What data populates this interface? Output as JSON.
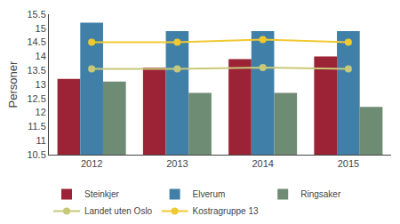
{
  "chart_data": {
    "type": "bar",
    "ylabel": "Personer",
    "categories": [
      "2012",
      "2013",
      "2014",
      "2015"
    ],
    "series": [
      {
        "name": "Steinkjer",
        "type": "bar",
        "color": "#9b2335",
        "values": [
          13.2,
          13.6,
          13.9,
          14.0
        ]
      },
      {
        "name": "Elverum",
        "type": "bar",
        "color": "#4080a8",
        "values": [
          15.2,
          14.9,
          14.9,
          14.9
        ]
      },
      {
        "name": "Ringsaker",
        "type": "bar",
        "color": "#6e8b74",
        "values": [
          13.1,
          12.7,
          12.7,
          12.2
        ]
      },
      {
        "name": "Landet uten Oslo",
        "type": "line",
        "marker": "circle",
        "line_style": "solid",
        "color": "#c8c87a",
        "values": [
          13.55,
          13.55,
          13.6,
          13.55
        ]
      },
      {
        "name": "Kostragruppe 13",
        "type": "line",
        "marker": "circle",
        "line_style": "solid",
        "color": "#f0c830",
        "values": [
          14.5,
          14.5,
          14.6,
          14.5
        ]
      }
    ],
    "ylim": [
      10.5,
      15.5
    ],
    "yticks": [
      10.5,
      11,
      11.5,
      12,
      12.5,
      13,
      13.5,
      14,
      14.5,
      15,
      15.5
    ],
    "grid": false,
    "legend": "bottom"
  }
}
